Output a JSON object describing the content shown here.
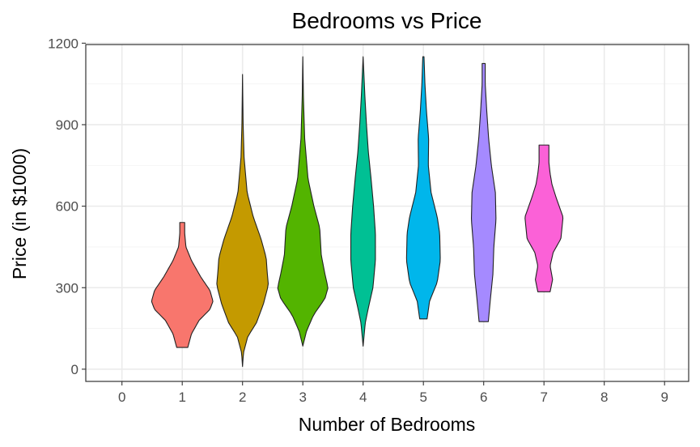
{
  "chart_data": {
    "type": "violin",
    "title": "Bedrooms vs Price",
    "xlabel": "Number of Bedrooms",
    "ylabel": "Price (in $1000)",
    "x_ticks": [
      "0",
      "1",
      "2",
      "3",
      "4",
      "5",
      "6",
      "7",
      "8",
      "9"
    ],
    "y_ticks": [
      "0",
      "300",
      "600",
      "900",
      "1200"
    ],
    "xlim": [
      -0.6,
      9.4
    ],
    "ylim": [
      -45,
      1195
    ],
    "grid": true,
    "legend": "none",
    "violins": [
      {
        "bedrooms": 1,
        "color": "#F8766D",
        "profile": [
          [
            80,
            0.18
          ],
          [
            130,
            0.3
          ],
          [
            180,
            0.55
          ],
          [
            220,
            0.9
          ],
          [
            250,
            1.0
          ],
          [
            290,
            0.9
          ],
          [
            340,
            0.6
          ],
          [
            400,
            0.3
          ],
          [
            450,
            0.12
          ],
          [
            500,
            0.08
          ],
          [
            540,
            0.08
          ]
        ]
      },
      {
        "bedrooms": 2,
        "color": "#C49A00",
        "profile": [
          [
            10,
            0.0
          ],
          [
            60,
            0.03
          ],
          [
            120,
            0.17
          ],
          [
            170,
            0.45
          ],
          [
            240,
            0.68
          ],
          [
            310,
            0.84
          ],
          [
            360,
            0.8
          ],
          [
            410,
            0.77
          ],
          [
            480,
            0.6
          ],
          [
            560,
            0.35
          ],
          [
            650,
            0.15
          ],
          [
            780,
            0.05
          ],
          [
            900,
            0.02
          ],
          [
            1085,
            0.0
          ]
        ]
      },
      {
        "bedrooms": 3,
        "color": "#53B400",
        "profile": [
          [
            85,
            0.0
          ],
          [
            140,
            0.12
          ],
          [
            200,
            0.35
          ],
          [
            260,
            0.72
          ],
          [
            300,
            0.82
          ],
          [
            350,
            0.72
          ],
          [
            420,
            0.6
          ],
          [
            520,
            0.55
          ],
          [
            600,
            0.36
          ],
          [
            700,
            0.17
          ],
          [
            850,
            0.06
          ],
          [
            1000,
            0.02
          ],
          [
            1150,
            0.0
          ]
        ]
      },
      {
        "bedrooms": 4,
        "color": "#00C094",
        "profile": [
          [
            85,
            0.0
          ],
          [
            170,
            0.07
          ],
          [
            230,
            0.18
          ],
          [
            300,
            0.32
          ],
          [
            400,
            0.4
          ],
          [
            500,
            0.4
          ],
          [
            600,
            0.34
          ],
          [
            700,
            0.26
          ],
          [
            800,
            0.17
          ],
          [
            900,
            0.11
          ],
          [
            1000,
            0.06
          ],
          [
            1150,
            0.0
          ]
        ]
      },
      {
        "bedrooms": 5,
        "color": "#00B6EB",
        "profile": [
          [
            185,
            0.12
          ],
          [
            250,
            0.2
          ],
          [
            320,
            0.45
          ],
          [
            400,
            0.55
          ],
          [
            500,
            0.53
          ],
          [
            560,
            0.45
          ],
          [
            650,
            0.25
          ],
          [
            750,
            0.16
          ],
          [
            850,
            0.17
          ],
          [
            950,
            0.1
          ],
          [
            1050,
            0.05
          ],
          [
            1150,
            0.02
          ]
        ]
      },
      {
        "bedrooms": 6,
        "color": "#A58AFF",
        "profile": [
          [
            175,
            0.15
          ],
          [
            260,
            0.22
          ],
          [
            350,
            0.3
          ],
          [
            450,
            0.33
          ],
          [
            550,
            0.4
          ],
          [
            650,
            0.38
          ],
          [
            750,
            0.25
          ],
          [
            850,
            0.16
          ],
          [
            950,
            0.1
          ],
          [
            1050,
            0.05
          ],
          [
            1125,
            0.05
          ]
        ]
      },
      {
        "bedrooms": 7,
        "color": "#FB61D7",
        "profile": [
          [
            285,
            0.2
          ],
          [
            330,
            0.28
          ],
          [
            380,
            0.2
          ],
          [
            430,
            0.3
          ],
          [
            480,
            0.55
          ],
          [
            560,
            0.62
          ],
          [
            630,
            0.4
          ],
          [
            680,
            0.26
          ],
          [
            720,
            0.2
          ],
          [
            760,
            0.16
          ],
          [
            825,
            0.16
          ]
        ]
      }
    ]
  }
}
